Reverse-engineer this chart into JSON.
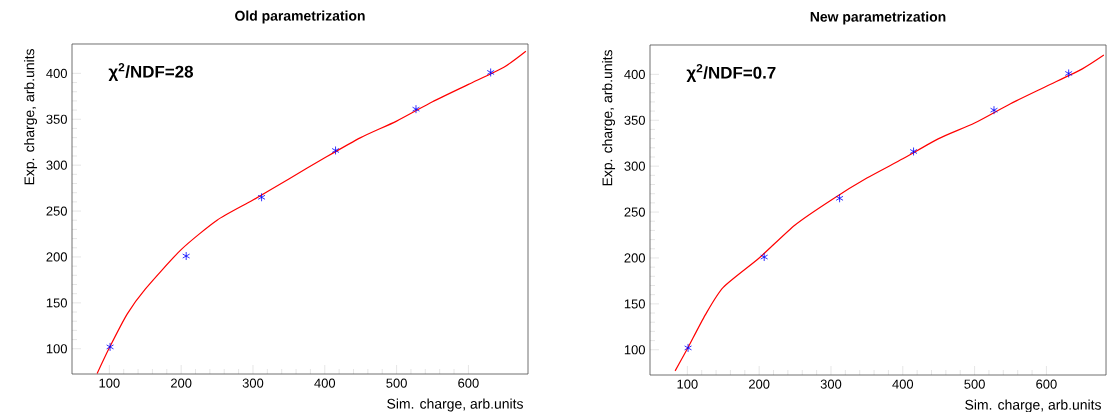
{
  "chart_data": [
    {
      "type": "scatter",
      "title": "Old parametrization",
      "xlabel": "Sim. charge, arb.units",
      "ylabel": "Exp. charge, arb.units",
      "xlim": [
        48,
        683
      ],
      "ylim": [
        72.5,
        432
      ],
      "xticks": [
        100,
        200,
        300,
        400,
        500,
        600
      ],
      "yticks": [
        100,
        150,
        200,
        250,
        300,
        350,
        400
      ],
      "annotations": [
        "χ$^{2}$/NDF=28"
      ],
      "series": [
        {
          "color": "#0000ff",
          "marker": "cross",
          "x": [
            101,
            207,
            312,
            415,
            527,
            631
          ],
          "values": [
            102,
            201,
            265,
            316,
            361,
            401
          ]
        },
        {
          "type": "line",
          "color": "#ff0000",
          "marker": "none",
          "x": [
            83,
            100,
            125,
            150,
            200,
            250,
            300,
            350,
            400,
            450,
            500,
            550,
            600,
            650,
            680
          ],
          "values": [
            73,
            101,
            138,
            165,
            208,
            240,
            262,
            285,
            308,
            330,
            348,
            369,
            388,
            407,
            424
          ]
        }
      ]
    },
    {
      "type": "scatter",
      "title": "New parametrization",
      "xlabel": "Sim. charge, arb.units",
      "ylabel": "Exp. charge, arb.units",
      "xlim": [
        48,
        683
      ],
      "ylim": [
        72.5,
        432
      ],
      "xticks": [
        100,
        200,
        300,
        400,
        500,
        600
      ],
      "yticks": [
        100,
        150,
        200,
        250,
        300,
        350,
        400
      ],
      "annotations": [
        "χ$^{2}$/NDF=0.7"
      ],
      "series": [
        {
          "color": "#0000ff",
          "marker": "cross",
          "x": [
            101,
            207,
            312,
            415,
            527,
            631
          ],
          "values": [
            102,
            201,
            265,
            316,
            361,
            401
          ]
        },
        {
          "type": "line",
          "color": "#ff0000",
          "marker": "none",
          "x": [
            83,
            100,
            125,
            150,
            200,
            250,
            300,
            350,
            400,
            450,
            500,
            550,
            600,
            650,
            680
          ],
          "values": [
            77,
            101,
            138,
            168,
            200,
            236,
            263,
            287,
            308,
            330,
            347,
            368,
            387,
            406,
            421
          ]
        }
      ]
    }
  ]
}
